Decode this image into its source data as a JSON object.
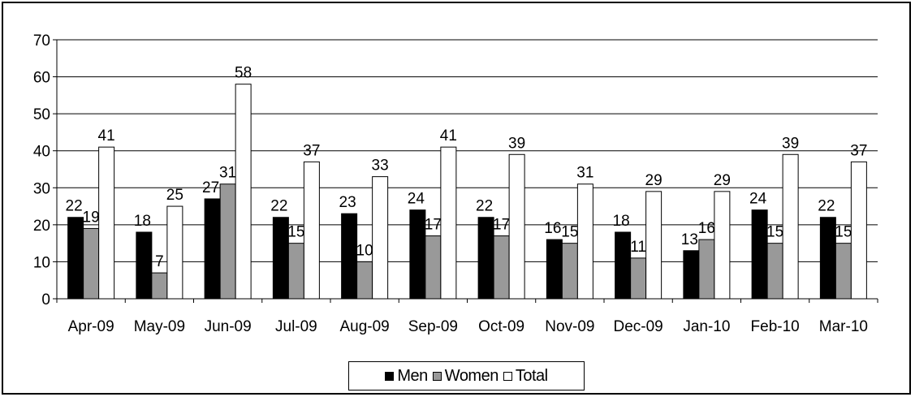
{
  "chart_data": {
    "type": "bar",
    "categories": [
      "Apr-09",
      "May-09",
      "Jun-09",
      "Jul-09",
      "Aug-09",
      "Sep-09",
      "Oct-09",
      "Nov-09",
      "Dec-09",
      "Jan-10",
      "Feb-10",
      "Mar-10"
    ],
    "series": [
      {
        "name": "Men",
        "color": "#000000",
        "values": [
          22,
          18,
          27,
          22,
          23,
          24,
          22,
          16,
          18,
          13,
          24,
          22
        ]
      },
      {
        "name": "Women",
        "color": "#999999",
        "values": [
          19,
          7,
          31,
          15,
          10,
          17,
          17,
          15,
          11,
          16,
          15,
          15
        ]
      },
      {
        "name": "Total",
        "color": "#ffffff",
        "values": [
          41,
          25,
          58,
          37,
          33,
          41,
          39,
          31,
          29,
          29,
          39,
          37
        ]
      }
    ],
    "title": "",
    "xlabel": "",
    "ylabel": "",
    "ylim": [
      0,
      70
    ],
    "yticks": [
      "0",
      "10",
      "20",
      "30",
      "40",
      "50",
      "60",
      "70"
    ],
    "grid": true,
    "data_labels": true,
    "legend_position": "bottom"
  }
}
